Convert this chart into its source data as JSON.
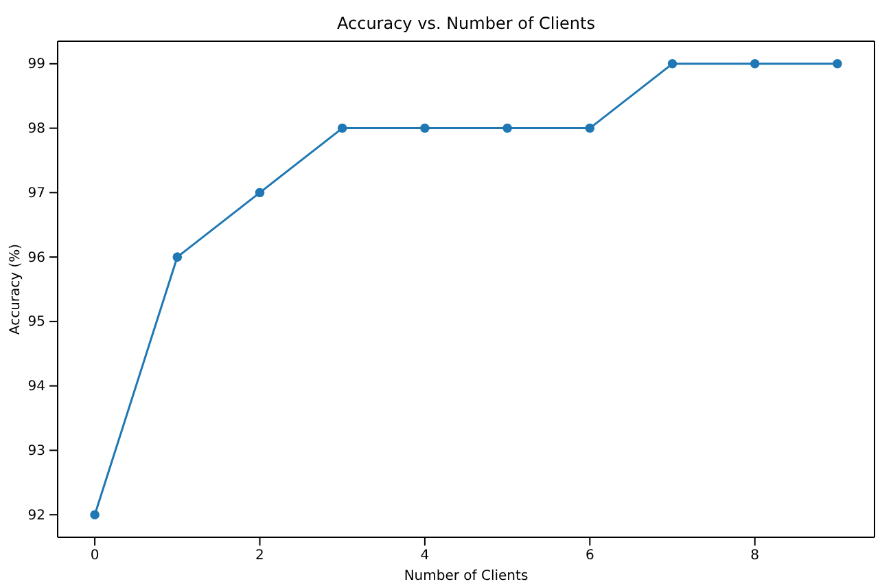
{
  "chart_data": {
    "type": "line",
    "title": "Accuracy vs. Number of Clients",
    "xlabel": "Number of Clients",
    "ylabel": "Accuracy (%)",
    "x": [
      0,
      1,
      2,
      3,
      4,
      5,
      6,
      7,
      8,
      9
    ],
    "series": [
      {
        "color": "#1f77b4",
        "values": [
          92,
          96,
          97,
          98,
          98,
          98,
          98,
          99,
          99,
          99
        ]
      }
    ],
    "xlim": [
      -0.45,
      9.45
    ],
    "xticks": [
      0,
      2,
      4,
      6,
      8
    ],
    "ylim": [
      91.65,
      99.35
    ],
    "yticks": [
      92,
      93,
      94,
      95,
      96,
      97,
      98,
      99
    ],
    "marker": "circle",
    "line_style": "solid",
    "grid": false
  }
}
